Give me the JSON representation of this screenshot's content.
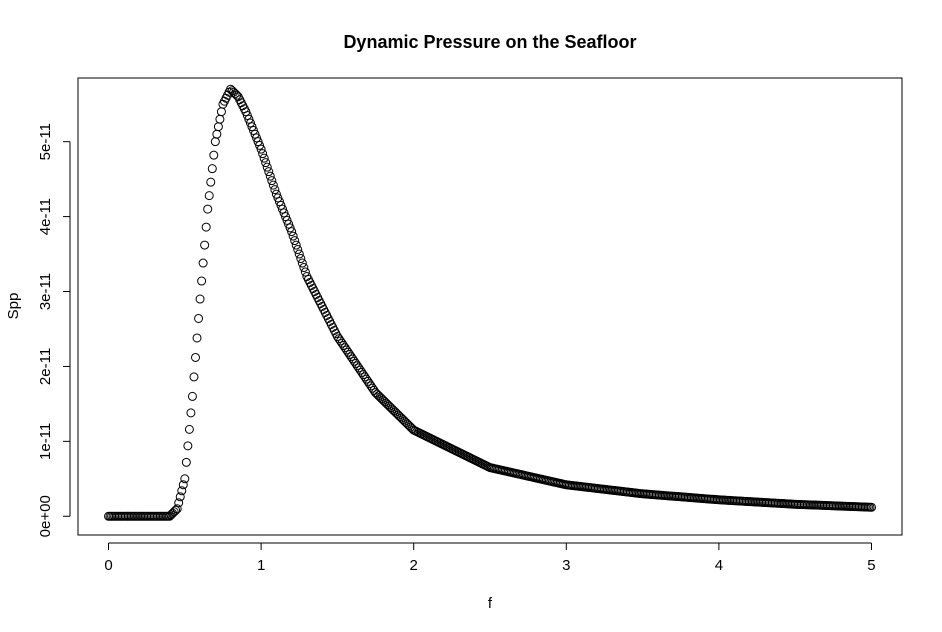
{
  "chart_data": {
    "type": "scatter",
    "title": "Dynamic Pressure on the Seafloor",
    "xlabel": "f",
    "ylabel": "Spp",
    "xlim": [
      -0.2,
      5.2
    ],
    "ylim": [
      -2.5e-12,
      5.85e-11
    ],
    "x_ticks": [
      0,
      1,
      2,
      3,
      4,
      5
    ],
    "x_tick_labels": [
      "0",
      "1",
      "2",
      "3",
      "4",
      "5"
    ],
    "y_ticks": [
      0,
      1e-11,
      2e-11,
      3e-11,
      4e-11,
      5e-11
    ],
    "y_tick_labels": [
      "0e+00",
      "1e-11",
      "2e-11",
      "3e-11",
      "4e-11",
      "5e-11"
    ],
    "grid": false,
    "legend": "none",
    "marker": "open-circle",
    "color": "#000000",
    "series": [
      {
        "x": [
          0.0,
          0.4,
          0.45,
          0.5,
          0.55,
          0.6,
          0.65,
          0.7,
          0.75,
          0.8,
          0.85,
          0.9,
          1.0,
          1.1,
          1.2,
          1.3,
          1.5,
          1.75,
          2.0,
          2.5,
          3.0,
          3.5,
          4.0,
          4.5,
          5.0
        ],
        "y": [
          0,
          0,
          1e-12,
          5e-12,
          1.6e-11,
          2.9e-11,
          4.1e-11,
          5e-11,
          5.5e-11,
          5.7e-11,
          5.6e-11,
          5.4e-11,
          4.9e-11,
          4.3e-11,
          3.8e-11,
          3.2e-11,
          2.4e-11,
          1.65e-11,
          1.15e-11,
          6.5e-12,
          4.2e-12,
          3e-12,
          2.2e-12,
          1.6e-12,
          1.2e-12
        ]
      }
    ]
  }
}
